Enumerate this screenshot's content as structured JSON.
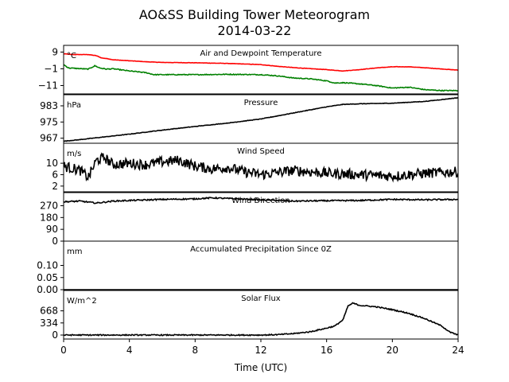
{
  "figure": {
    "title_line1": "AO&SS Building Tower Meteorogram",
    "title_line2": "2014-03-22",
    "xlabel": "Time (UTC)"
  },
  "chart_data": {
    "type": "line",
    "x_axis": {
      "range": [
        0,
        24
      ],
      "ticks": [
        0,
        4,
        8,
        12,
        16,
        20,
        24
      ],
      "tick_labels": [
        "0",
        "4",
        "8",
        "12",
        "16",
        "20",
        "24"
      ]
    },
    "panels": [
      {
        "title": "Air and Dewpoint Temperature",
        "unit": "°C",
        "ylim": [
          -16,
          13
        ],
        "yticks": [
          9,
          -1,
          -11
        ],
        "ytick_labels": [
          "9",
          "−1",
          "−11"
        ],
        "series": [
          {
            "color": "#ff0000",
            "noise": 0.1,
            "x": [
              0,
              0.5,
              1.5,
              2.0,
              2.3,
              2.7,
              3,
              4,
              5,
              6,
              8,
              10,
              12,
              13,
              14,
              16,
              17,
              18,
              19,
              20,
              21,
              22,
              23,
              24
            ],
            "values": [
              8,
              7.5,
              7.5,
              6.8,
              5.5,
              5,
              4.4,
              3.8,
              3.2,
              2.8,
              2.6,
              2.2,
              1.5,
              0.5,
              -0.3,
              -1.5,
              -2.3,
              -1.5,
              -0.5,
              0.2,
              0.2,
              -0.4,
              -1.1,
              -1.8
            ]
          },
          {
            "color": "#008000",
            "noise": 0.25,
            "x": [
              0,
              0.3,
              1.5,
              1.9,
              2.2,
              2.6,
              3,
              4,
              5,
              5.5,
              6,
              8,
              10,
              12,
              13,
              14,
              15,
              16,
              16.5,
              17,
              18,
              19,
              20,
              21,
              22,
              23,
              24
            ],
            "values": [
              1.5,
              -0.5,
              -1.2,
              0.8,
              -0.5,
              -1.2,
              -1.0,
              -2.3,
              -3.3,
              -4.5,
              -4.5,
              -4.5,
              -4.3,
              -4.5,
              -5.2,
              -6.5,
              -7.0,
              -8.2,
              -9.5,
              -9.3,
              -10.0,
              -11.0,
              -12.5,
              -12.0,
              -13.5,
              -14.0,
              -14.0
            ]
          }
        ]
      },
      {
        "title": "Pressure",
        "unit": "hPa",
        "ylim": [
          964.5,
          988.5
        ],
        "yticks": [
          983,
          975,
          967
        ],
        "ytick_labels": [
          "983",
          "975",
          "967"
        ],
        "series": [
          {
            "color": "#000000",
            "noise": 0.12,
            "x": [
              0,
              1,
              2,
              4,
              6,
              8,
              10,
              12,
              14,
              16,
              17,
              18,
              20,
              22,
              24
            ],
            "values": [
              965.5,
              966.3,
              967.2,
              969.0,
              971.0,
              972.8,
              974.5,
              976.5,
              979.5,
              982.5,
              983.7,
              984.0,
              984.3,
              985.2,
              987.0
            ]
          }
        ]
      },
      {
        "title": "Wind Speed",
        "unit": "m/s",
        "ylim": [
          0,
          17
        ],
        "yticks": [
          10,
          6,
          2
        ],
        "ytick_labels": [
          "10",
          "6",
          "2"
        ],
        "series": [
          {
            "color": "#000000",
            "noise": 1.8,
            "x": [
              0,
              1,
              1.5,
              2,
              2.5,
              3,
              4,
              5,
              6,
              7,
              8,
              9,
              10,
              11,
              12,
              14,
              16,
              18,
              20,
              22,
              24
            ],
            "values": [
              9,
              7.5,
              5,
              11,
              12,
              9.5,
              10,
              9.5,
              10.5,
              11,
              9,
              8,
              8.5,
              7,
              6,
              7.5,
              6.5,
              6,
              5.5,
              6.5,
              7
            ]
          }
        ]
      },
      {
        "title": "Wind Direction",
        "unit": "",
        "ylim": [
          0,
          370
        ],
        "yticks": [
          270,
          180,
          90,
          0
        ],
        "ytick_labels": [
          "270",
          "180",
          "90",
          "0"
        ],
        "series": [
          {
            "color": "#000000",
            "noise": 5,
            "x": [
              0,
              1,
              2,
              3,
              4,
              6,
              8,
              9,
              10,
              12,
              14,
              16,
              18,
              20,
              22,
              24
            ],
            "values": [
              300,
              305,
              290,
              305,
              310,
              318,
              322,
              330,
              325,
              315,
              305,
              308,
              310,
              318,
              315,
              318
            ]
          }
        ]
      },
      {
        "title": "Accumulated Precipitation Since 0Z",
        "unit": "mm",
        "ylim": [
          0,
          0.2
        ],
        "yticks": [
          0.1,
          0.05,
          0.0
        ],
        "ytick_labels": [
          "0.10",
          "0.05",
          "0.00"
        ],
        "series": [
          {
            "color": "#000000",
            "noise": 0,
            "x": [
              0,
              24
            ],
            "values": [
              0,
              0
            ]
          }
        ]
      },
      {
        "title": "Solar Flux",
        "unit": "W/m^2",
        "ylim": [
          -110,
          1230
        ],
        "yticks": [
          668,
          334,
          0
        ],
        "ytick_labels": [
          "668",
          "334",
          "0"
        ],
        "series": [
          {
            "color": "#000000",
            "noise": 15,
            "x": [
              0,
              6,
              12,
              13,
              14,
              15,
              16,
              16.5,
              17,
              17.3,
              17.6,
              18,
              19,
              20,
              21,
              22,
              23,
              23.5,
              24
            ],
            "values": [
              0,
              0,
              0,
              10,
              40,
              90,
              190,
              250,
              420,
              800,
              880,
              820,
              780,
              700,
              600,
              450,
              250,
              80,
              0
            ]
          }
        ]
      }
    ]
  }
}
